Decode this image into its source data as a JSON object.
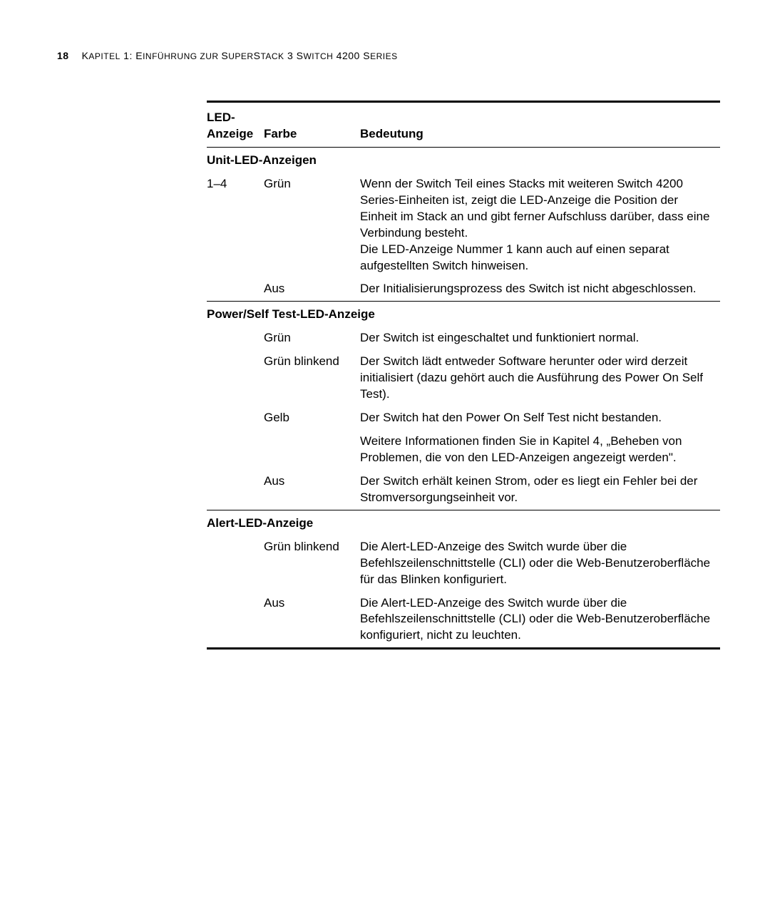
{
  "header": {
    "page_number": "18",
    "chapter_line_prefix": "K",
    "chapter_line_small": "APITEL",
    "chapter_rest": " 1: E",
    "chapter_small2": "INFÜHRUNG ZUR ",
    "chapter_rest2": "S",
    "chapter_small3": "UPER",
    "chapter_rest3": "S",
    "chapter_small4": "TACK",
    "chapter_rest4": " 3 S",
    "chapter_small5": "WITCH",
    "chapter_rest5": " 4200 S",
    "chapter_small6": "ERIES"
  },
  "table": {
    "head": {
      "col1_line1": "LED-",
      "col1_line2": "Anzeige",
      "col2": "Farbe",
      "col3": "Bedeutung"
    },
    "sections": [
      {
        "title": "Unit-LED-Anzeigen",
        "rows": [
          {
            "anzeige": "1–4",
            "farbe": "Grün",
            "bedeutung": "Wenn der Switch Teil eines Stacks mit weiteren Switch 4200 Series-Einheiten ist, zeigt die LED-Anzeige die Position der Einheit im Stack an und gibt ferner Aufschluss darüber, dass eine Verbindung besteht.\nDie LED-Anzeige Nummer 1 kann auch auf einen separat aufgestellten Switch hinweisen."
          },
          {
            "anzeige": "",
            "farbe": "Aus",
            "bedeutung": "Der Initialisierungsprozess des Switch ist nicht abgeschlossen."
          }
        ]
      },
      {
        "title": "Power/Self Test-LED-Anzeige",
        "rows": [
          {
            "anzeige": "",
            "farbe": "Grün",
            "bedeutung": "Der Switch ist eingeschaltet und funktioniert normal."
          },
          {
            "anzeige": "",
            "farbe": "Grün blinkend",
            "bedeutung": "Der Switch lädt entweder Software herunter oder wird derzeit initialisiert (dazu gehört auch die Ausführung des Power On Self Test)."
          },
          {
            "anzeige": "",
            "farbe": "Gelb",
            "bedeutung": "Der Switch hat den Power On Self Test nicht bestanden."
          },
          {
            "anzeige": "",
            "farbe": "",
            "bedeutung": "Weitere Informationen finden Sie in Kapitel 4, „Beheben von Problemen, die von den LED-Anzeigen angezeigt werden\"."
          },
          {
            "anzeige": "",
            "farbe": "Aus",
            "bedeutung": "Der Switch erhält keinen Strom, oder es liegt ein Fehler bei der Stromversorgungseinheit vor."
          }
        ]
      },
      {
        "title": "Alert-LED-Anzeige",
        "rows": [
          {
            "anzeige": "",
            "farbe": "Grün blinkend",
            "bedeutung": "Die Alert-LED-Anzeige des Switch wurde über die Befehlszeilenschnittstelle (CLI) oder die Web-Benutzeroberfläche für das Blinken konfiguriert."
          },
          {
            "anzeige": "",
            "farbe": "Aus",
            "bedeutung": "Die Alert-LED-Anzeige des Switch wurde über die Befehlszeilenschnittstelle (CLI) oder die Web-Benutzeroberfläche konfiguriert, nicht zu leuchten."
          }
        ]
      }
    ]
  }
}
